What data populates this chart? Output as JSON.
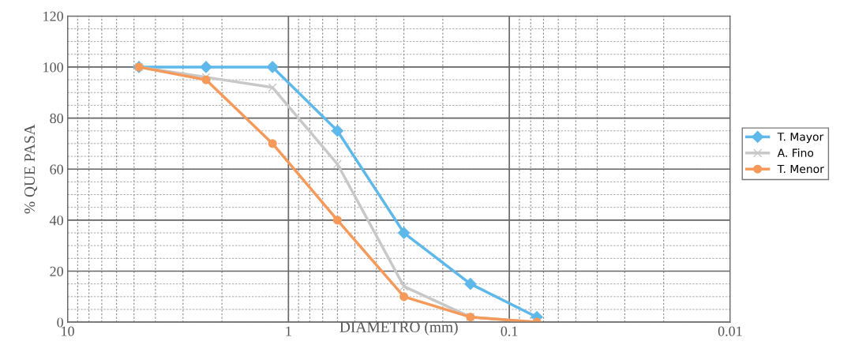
{
  "chart_data": {
    "type": "line",
    "xlabel": "DIAMETRO (mm)",
    "ylabel": "% QUE PASA",
    "log": "x",
    "xlim": [
      10,
      0.01
    ],
    "xticks": [
      10,
      1,
      0.1,
      0.01
    ],
    "ylim": [
      0,
      120
    ],
    "yticks": [
      0,
      20,
      40,
      60,
      80,
      100,
      120
    ],
    "grid": true,
    "legend": "right",
    "line_style": "solid",
    "x": [
      4.75,
      2.36,
      1.18,
      0.6,
      0.3,
      0.15,
      0.075
    ],
    "series": [
      {
        "name": "T. Mayor",
        "color": "#5eb8ea",
        "marker": "diamond",
        "values": [
          100,
          100,
          100,
          75,
          35,
          15,
          2
        ]
      },
      {
        "name": "A. Fino",
        "color": "#c8c8c8",
        "marker": "cross",
        "values": [
          100,
          96,
          92,
          62,
          14,
          2,
          0
        ]
      },
      {
        "name": "T. Menor",
        "color": "#f59a5a",
        "marker": "circle",
        "values": [
          100,
          95,
          70,
          40,
          10,
          2,
          0
        ]
      }
    ]
  }
}
